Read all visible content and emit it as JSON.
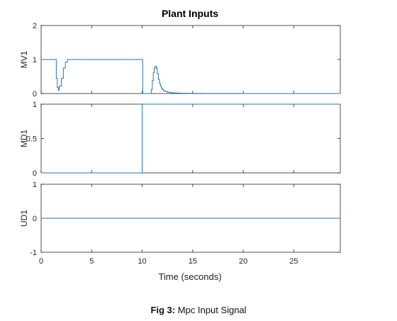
{
  "figure": {
    "title": "Plant Inputs",
    "caption_bold": "Fig 3:",
    "caption_text": " Mpc Input Signal",
    "line_color": "#1f77b4",
    "xlabel": "Time (seconds)",
    "xlim": [
      0,
      29.6
    ],
    "xticks": [
      0,
      5,
      10,
      15,
      20,
      25
    ]
  },
  "chart_data": [
    {
      "type": "line",
      "ylabel": "MV1",
      "ylim": [
        0,
        2
      ],
      "yticks": [
        0,
        1,
        2
      ],
      "ytick_labels": [
        "0",
        "1",
        "2"
      ],
      "grid": false,
      "step": true,
      "x": [
        0,
        1.4,
        1.5,
        1.6,
        1.7,
        1.8,
        2.0,
        2.2,
        2.4,
        2.6,
        2.8,
        10.0,
        10.05,
        10.8,
        10.9,
        11.0,
        11.1,
        11.2,
        11.3,
        11.4,
        11.5,
        11.6,
        11.7,
        11.8,
        11.9,
        12.0,
        12.1,
        12.3,
        12.5,
        12.7,
        12.9,
        13.2,
        13.6,
        14.0,
        14.5,
        15.0,
        16.0,
        18.0,
        20.0,
        22.0,
        24.0,
        26.0,
        29.6
      ],
      "values": [
        1.0,
        1.0,
        0.45,
        0.18,
        0.1,
        0.22,
        0.45,
        0.75,
        0.92,
        1.0,
        1.0,
        1.0,
        0.0,
        0.0,
        0.12,
        0.38,
        0.62,
        0.76,
        0.8,
        0.74,
        0.58,
        0.42,
        0.3,
        0.22,
        0.16,
        0.12,
        0.08,
        0.06,
        0.04,
        0.03,
        0.02,
        0.015,
        0.01,
        0.008,
        0.006,
        0.004,
        0.003,
        0.002,
        0.001,
        0.001,
        0.0005,
        0.0,
        0.0
      ]
    },
    {
      "type": "line",
      "ylabel": "MD1",
      "ylim": [
        0,
        1
      ],
      "yticks": [
        0,
        0.5,
        1
      ],
      "ytick_labels": [
        "0",
        "0.5",
        "1"
      ],
      "grid": false,
      "step": true,
      "x": [
        0,
        10.0,
        10.0,
        29.6
      ],
      "values": [
        0,
        0,
        1,
        1
      ]
    },
    {
      "type": "line",
      "ylabel": "UD1",
      "ylim": [
        -1,
        1
      ],
      "yticks": [
        -1,
        0,
        1
      ],
      "ytick_labels": [
        "-1",
        "0",
        "1"
      ],
      "grid": false,
      "step": false,
      "x": [
        0,
        29.6
      ],
      "values": [
        0,
        0
      ]
    }
  ]
}
